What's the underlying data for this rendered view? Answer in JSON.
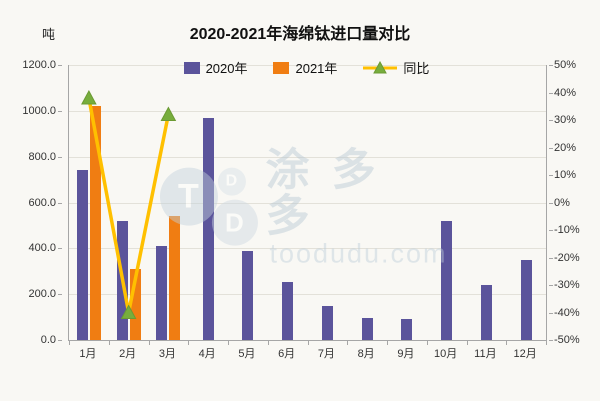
{
  "watermark": {
    "brand": "涂多多",
    "domain": "toodudu.com",
    "logo_letters": [
      "T",
      "D",
      "D"
    ]
  },
  "chart_data": {
    "type": "bar+line",
    "title": "2020-2021年海绵钛进口量对比",
    "categories": [
      "1月",
      "2月",
      "3月",
      "4月",
      "5月",
      "6月",
      "7月",
      "8月",
      "9月",
      "10月",
      "11月",
      "12月"
    ],
    "series": [
      {
        "name": "2020年",
        "type": "bar",
        "color": "#5b549b",
        "values": [
          740,
          520,
          410,
          970,
          390,
          255,
          150,
          95,
          90,
          520,
          240,
          350
        ]
      },
      {
        "name": "2021年",
        "type": "bar",
        "color": "#f07d12",
        "values": [
          1020,
          310,
          540,
          null,
          null,
          null,
          null,
          null,
          null,
          null,
          null,
          null
        ]
      },
      {
        "name": "同比",
        "type": "line",
        "axis": "right",
        "color": "#ffc000",
        "marker": "triangle",
        "marker_color": "#77ad3c",
        "marker_stroke": "#6b9a33",
        "values": [
          38,
          -40,
          32,
          null,
          null,
          null,
          null,
          null,
          null,
          null,
          null,
          null
        ]
      }
    ],
    "left_axis": {
      "unit": "吨",
      "min": 0,
      "max": 1200,
      "ticks": [
        "1200.0",
        "1000.0",
        "800.0",
        "600.0",
        "400.0",
        "200.0",
        "0.0"
      ]
    },
    "right_axis": {
      "min": -50,
      "max": 50,
      "ticks": [
        "50%",
        "40%",
        "30%",
        "20%",
        "10%",
        "0%",
        "-10%",
        "-20%",
        "-30%",
        "-40%",
        "-50%"
      ]
    },
    "grid": "horizontal",
    "legend_position": "top-center"
  }
}
